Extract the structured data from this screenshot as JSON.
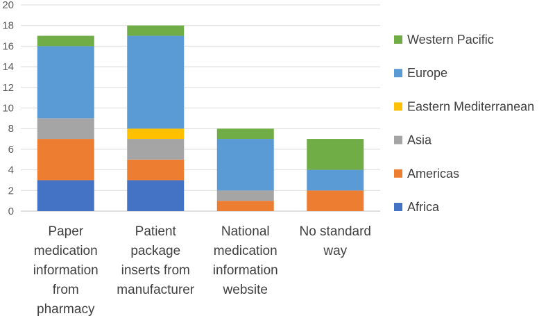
{
  "chart_data": {
    "type": "bar",
    "stacked": true,
    "title": "",
    "xlabel": "",
    "ylabel": "",
    "ylim": [
      0,
      20
    ],
    "yticks": [
      0,
      2,
      4,
      6,
      8,
      10,
      12,
      14,
      16,
      18,
      20
    ],
    "grid": true,
    "legend_position": "right",
    "categories": [
      "Paper medication information from pharmacy",
      "Patient package inserts from manufacturer",
      "National medication information website",
      "No standard way"
    ],
    "category_lines": [
      [
        "Paper",
        "medication",
        "information",
        "from",
        "pharmacy"
      ],
      [
        "Patient",
        "package",
        "inserts from",
        "manufacturer"
      ],
      [
        "National",
        "medication",
        "information",
        "website"
      ],
      [
        "No standard",
        "way"
      ]
    ],
    "series": [
      {
        "name": "Africa",
        "color": "#4472C4",
        "values": [
          3,
          3,
          0,
          0
        ]
      },
      {
        "name": "Americas",
        "color": "#ED7D31",
        "values": [
          4,
          2,
          1,
          2
        ]
      },
      {
        "name": "Asia",
        "color": "#A5A5A5",
        "values": [
          2,
          2,
          1,
          0
        ]
      },
      {
        "name": "Eastern Mediterranean",
        "color": "#FFC000",
        "values": [
          0,
          1,
          0,
          0
        ]
      },
      {
        "name": "Europe",
        "color": "#5B9BD5",
        "values": [
          7,
          9,
          5,
          2
        ]
      },
      {
        "name": "Western Pacific",
        "color": "#70AD47",
        "values": [
          1,
          1,
          1,
          3
        ]
      }
    ]
  }
}
